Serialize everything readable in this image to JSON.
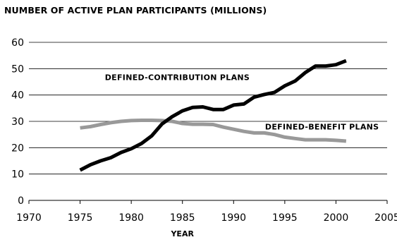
{
  "chart_data": {
    "type": "line",
    "title": "NUMBER OF ACTIVE PLAN PARTICIPANTS (MILLIONS)",
    "xlabel": "YEAR",
    "ylabel": "",
    "xlim": [
      1970,
      2005
    ],
    "ylim": [
      0,
      60
    ],
    "xticks": [
      1970,
      1975,
      1980,
      1985,
      1990,
      1995,
      2000,
      2005
    ],
    "yticks": [
      0,
      10,
      20,
      30,
      40,
      50,
      60
    ],
    "grid": "horizontal",
    "legend": "none",
    "series": [
      {
        "name": "DEFINED-CONTRIBUTION PLANS",
        "color": "#000000",
        "x": [
          1975,
          1976,
          1977,
          1978,
          1979,
          1980,
          1981,
          1982,
          1983,
          1984,
          1985,
          1986,
          1987,
          1988,
          1989,
          1990,
          1991,
          1992,
          1993,
          1994,
          1995,
          1996,
          1997,
          1998,
          1999,
          2000,
          2001
        ],
        "y": [
          11.5,
          13.5,
          15,
          16.2,
          18.2,
          19.6,
          21.6,
          24.5,
          29,
          31.8,
          34,
          35.3,
          35.5,
          34.5,
          34.5,
          36.2,
          36.6,
          39.2,
          40.2,
          41,
          43.5,
          45.3,
          48.5,
          51,
          51,
          51.5,
          53
        ]
      },
      {
        "name": "DEFINED-BENEFIT PLANS",
        "color": "#999999",
        "x": [
          1975,
          1976,
          1977,
          1978,
          1979,
          1980,
          1981,
          1982,
          1983,
          1984,
          1985,
          1986,
          1987,
          1988,
          1989,
          1990,
          1991,
          1992,
          1993,
          1994,
          1995,
          1996,
          1997,
          1998,
          1999,
          2000,
          2001
        ],
        "y": [
          27.5,
          28,
          28.8,
          29.5,
          30,
          30.3,
          30.4,
          30.4,
          30.3,
          30,
          29.2,
          28.9,
          28.9,
          28.8,
          27.8,
          27,
          26.2,
          25.6,
          25.6,
          25,
          24,
          23.5,
          23,
          23,
          23,
          22.8,
          22.5
        ]
      }
    ],
    "annotations": [
      {
        "text": "DEFINED-CONTRIBUTION PLANS",
        "x": 1984.5,
        "y": 45.7,
        "anchor": "middle"
      },
      {
        "text": "DEFINED-BENEFIT PLANS",
        "x": 2004.2,
        "y": 26.9,
        "anchor": "end"
      }
    ]
  }
}
